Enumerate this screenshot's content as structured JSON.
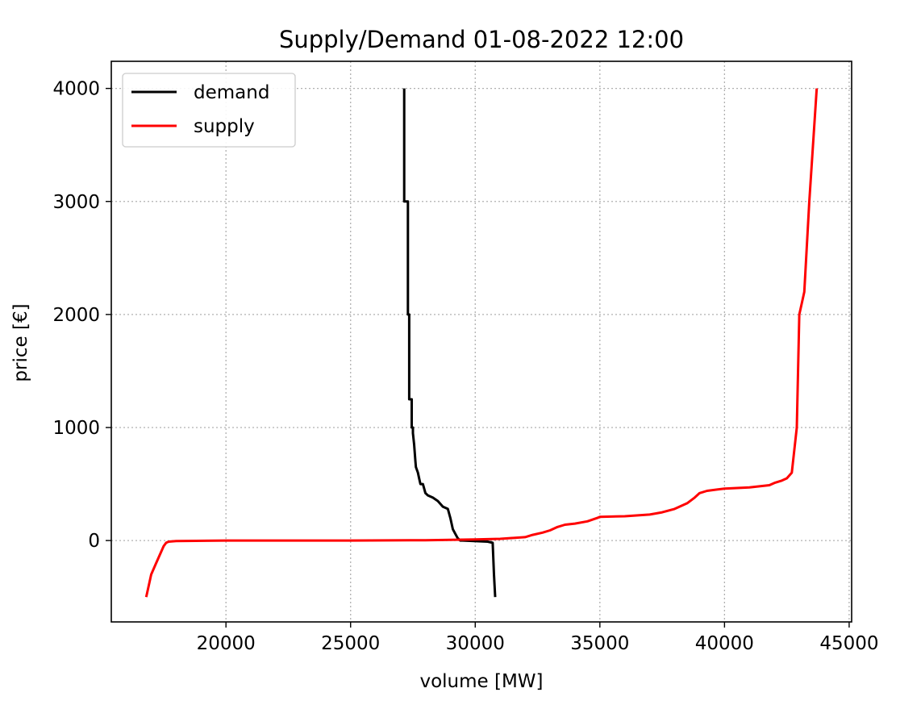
{
  "chart_data": {
    "type": "line",
    "title": "Supply/Demand 01-08-2022 12:00",
    "xlabel": "volume [MW]",
    "ylabel": "price [€]",
    "xlim": [
      15400,
      45100
    ],
    "ylim": [
      -720,
      4240
    ],
    "xticks": [
      20000,
      25000,
      30000,
      35000,
      40000,
      45000
    ],
    "xtick_labels": [
      "20000",
      "25000",
      "30000",
      "35000",
      "40000",
      "45000"
    ],
    "yticks": [
      0,
      1000,
      2000,
      3000,
      4000
    ],
    "ytick_labels": [
      "0",
      "1000",
      "2000",
      "3000",
      "4000"
    ],
    "grid": true,
    "legend_position": "top-left",
    "series": [
      {
        "name": "demand",
        "color": "#000000",
        "x": [
          27150,
          27150,
          27300,
          27300,
          27350,
          27350,
          27450,
          27450,
          27500,
          27500,
          27550,
          27600,
          27620,
          27700,
          27750,
          27800,
          27900,
          28000,
          28100,
          28300,
          28500,
          28700,
          28900,
          29000,
          29100,
          29200,
          29300,
          29400,
          29500,
          30500,
          30700,
          30750,
          30800
        ],
        "y": [
          4000,
          3000,
          3000,
          2000,
          2000,
          1250,
          1250,
          1000,
          1000,
          950,
          850,
          700,
          650,
          600,
          550,
          500,
          500,
          420,
          400,
          380,
          350,
          300,
          280,
          200,
          100,
          60,
          20,
          0,
          0,
          -10,
          -20,
          -300,
          -500
        ]
      },
      {
        "name": "supply",
        "color": "#ff0000",
        "x": [
          16800,
          16900,
          17000,
          17200,
          17400,
          17500,
          17600,
          17700,
          18000,
          20000,
          25000,
          28000,
          30000,
          31000,
          32000,
          32300,
          32700,
          33000,
          33300,
          33600,
          34000,
          34500,
          34900,
          35000,
          36000,
          37000,
          37500,
          38000,
          38500,
          38800,
          39000,
          39300,
          40000,
          41000,
          41800,
          42000,
          42300,
          42500,
          42700,
          42800,
          42900,
          43000,
          43100,
          43200,
          43400,
          43700
        ],
        "y": [
          -500,
          -400,
          -300,
          -200,
          -100,
          -50,
          -20,
          -10,
          -5,
          0,
          0,
          3,
          10,
          15,
          30,
          50,
          70,
          90,
          120,
          140,
          150,
          170,
          200,
          210,
          215,
          230,
          250,
          280,
          330,
          380,
          420,
          440,
          460,
          470,
          490,
          510,
          530,
          550,
          600,
          800,
          1000,
          2000,
          2100,
          2200,
          3000,
          4000
        ]
      }
    ]
  }
}
